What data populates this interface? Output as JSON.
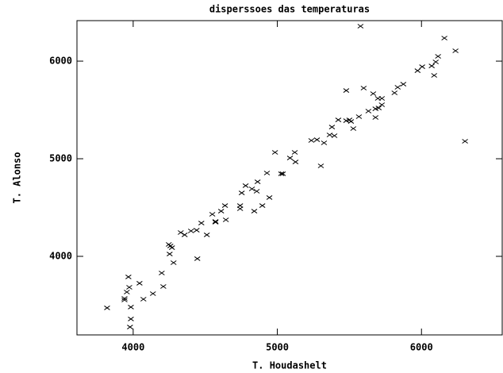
{
  "chart_data": {
    "type": "scatter",
    "title": "disperssoes das temperaturas",
    "xlabel": "T. Houdashelt",
    "ylabel": "T. Alonso",
    "color": "#000000",
    "x": [
      3819,
      3940,
      3940,
      3956,
      3967,
      3973,
      3984,
      3984,
      3978,
      4044,
      4071,
      4137,
      4198,
      4209,
      4247,
      4258,
      4269,
      4253,
      4280,
      4330,
      4357,
      4401,
      4440,
      4445,
      4473,
      4511,
      4549,
      4571,
      4571,
      4610,
      4643,
      4637,
      4742,
      4742,
      4753,
      4780,
      4824,
      4840,
      4857,
      4863,
      4896,
      4928,
      4945,
      4984,
      5027,
      5038,
      5088,
      5121,
      5126,
      5236,
      5275,
      5302,
      5324,
      5363,
      5379,
      5396,
      5423,
      5478,
      5478,
      5500,
      5511,
      5527,
      5566,
      5577,
      5599,
      5632,
      5665,
      5681,
      5681,
      5703,
      5698,
      5725,
      5725,
      5813,
      5835,
      5874,
      5973,
      6005,
      6071,
      6088,
      6099,
      6115,
      6159,
      6236,
      6302
    ],
    "y": [
      3472,
      3569,
      3553,
      3634,
      3789,
      3683,
      3480,
      3358,
      3276,
      3724,
      3561,
      3618,
      3829,
      3691,
      4122,
      4106,
      4089,
      4024,
      3935,
      4244,
      4220,
      4260,
      4268,
      3976,
      4341,
      4220,
      4431,
      4358,
      4350,
      4463,
      4374,
      4520,
      4488,
      4520,
      4650,
      4724,
      4691,
      4463,
      4667,
      4764,
      4520,
      4854,
      4602,
      5065,
      4846,
      4846,
      5008,
      5065,
      4967,
      5187,
      5195,
      4927,
      5163,
      5244,
      5325,
      5236,
      5398,
      5699,
      5390,
      5398,
      5382,
      5309,
      5431,
      6358,
      5724,
      5488,
      5667,
      5423,
      5512,
      5520,
      5618,
      5553,
      5618,
      5675,
      5732,
      5764,
      5902,
      5943,
      5951,
      5854,
      5992,
      6049,
      6236,
      6106,
      5179
    ],
    "xlim": [
      3610,
      6560
    ],
    "xticks": [
      4000,
      5000,
      6000
    ],
    "ylim": [
      3195,
      6415
    ],
    "yticks": [
      4000,
      5000,
      6000
    ]
  }
}
